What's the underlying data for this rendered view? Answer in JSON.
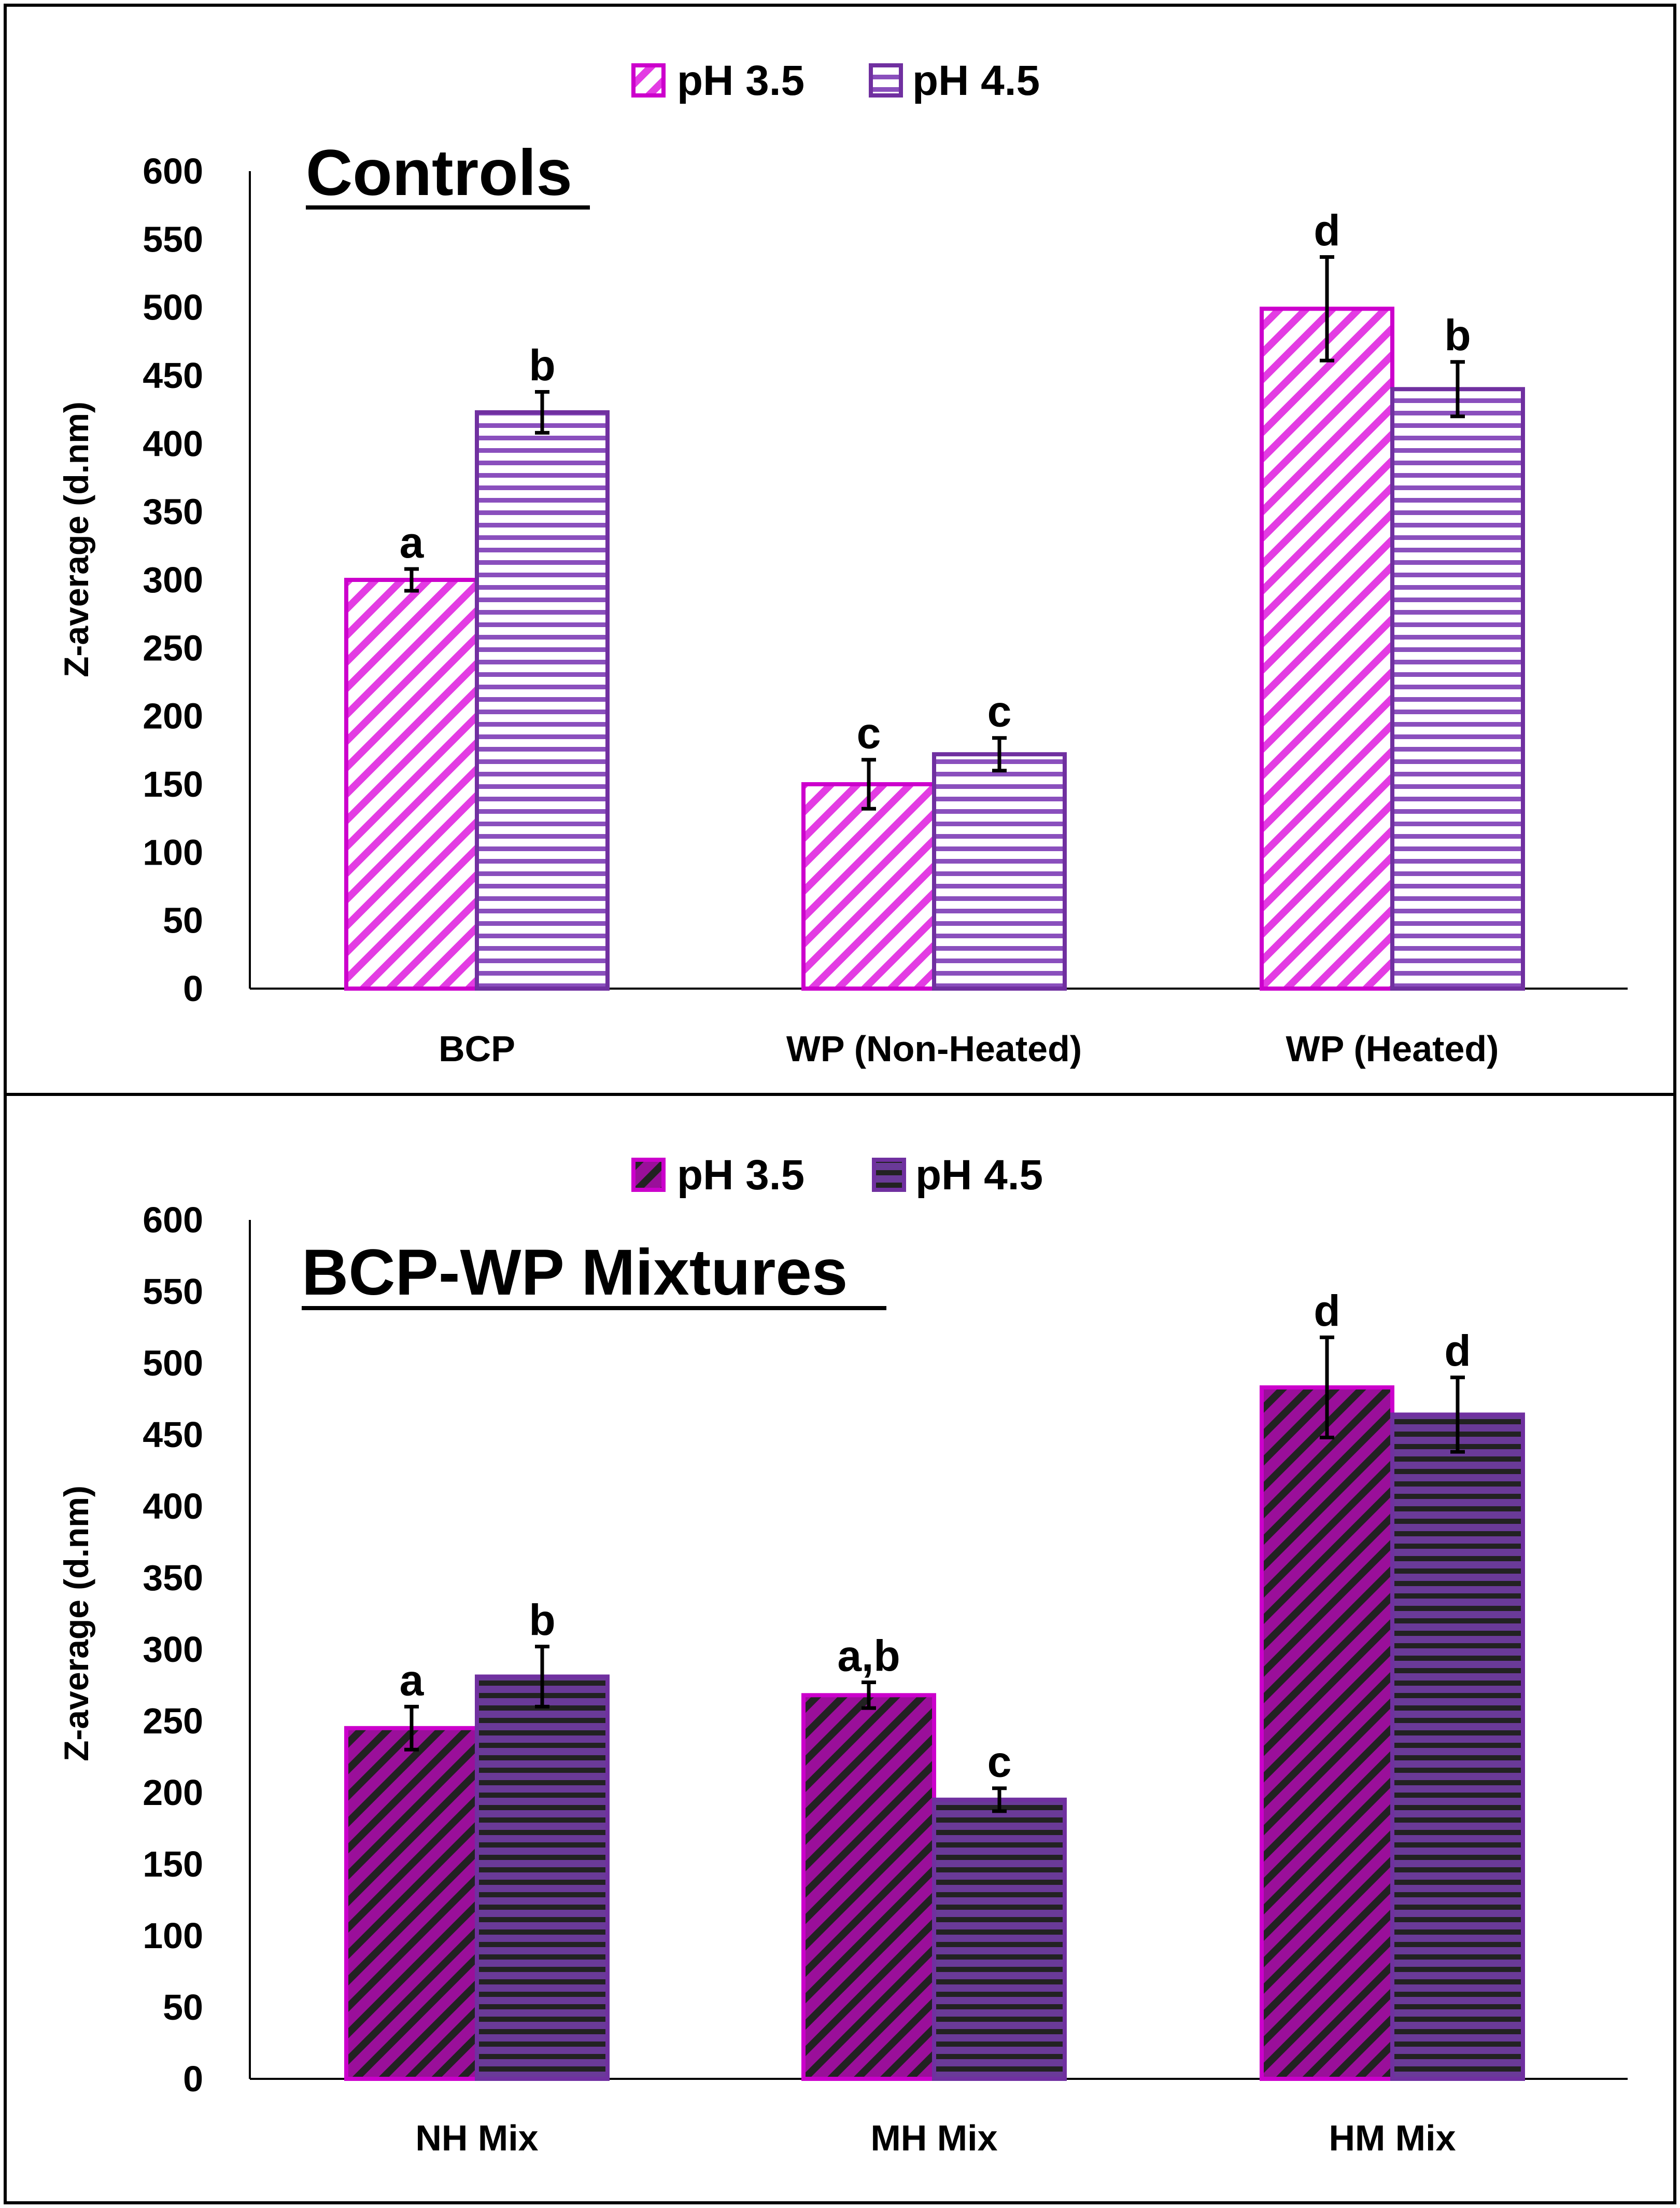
{
  "colors": {
    "ph35": "#cc00cc",
    "ph45": "#7030a0",
    "ph35_dark": "#8b008b",
    "ph45_dark": "#5b2c86",
    "stripe_dark": "#222222",
    "axis": "#000000"
  },
  "chart_data": [
    {
      "type": "bar",
      "title": "Controls",
      "ylabel": "Z-average (d.nm)",
      "xlabel": "",
      "ylim": [
        0,
        600
      ],
      "yticks": [
        0,
        50,
        100,
        150,
        200,
        250,
        300,
        350,
        400,
        450,
        500,
        550,
        600
      ],
      "categories": [
        "BCP",
        "WP (Non-Heated)",
        "WP (Heated)"
      ],
      "legend": "top-center",
      "series": [
        {
          "name": "pH 3.5",
          "values": [
            300,
            150,
            499
          ],
          "errors": [
            8,
            18,
            38
          ],
          "labels": [
            "a",
            "c",
            "d"
          ]
        },
        {
          "name": "pH 4.5",
          "values": [
            423,
            172,
            440
          ],
          "errors": [
            15,
            12,
            20
          ],
          "labels": [
            "b",
            "c",
            "b"
          ]
        }
      ]
    },
    {
      "type": "bar",
      "title": "BCP-WP Mixtures",
      "ylabel": "Z-average (d.nm)",
      "xlabel": "",
      "ylim": [
        0,
        600
      ],
      "yticks": [
        0,
        50,
        100,
        150,
        200,
        250,
        300,
        350,
        400,
        450,
        500,
        550,
        600
      ],
      "categories": [
        "NH Mix",
        "MH Mix",
        "HM Mix"
      ],
      "legend": "top-center",
      "series": [
        {
          "name": "pH 3.5",
          "values": [
            245,
            268,
            483
          ],
          "errors": [
            15,
            9,
            35
          ],
          "labels": [
            "a",
            "a,b",
            "d"
          ]
        },
        {
          "name": "pH 4.5",
          "values": [
            281,
            195,
            464
          ],
          "errors": [
            21,
            8,
            26
          ],
          "labels": [
            "b",
            "c",
            "d"
          ]
        }
      ]
    }
  ]
}
